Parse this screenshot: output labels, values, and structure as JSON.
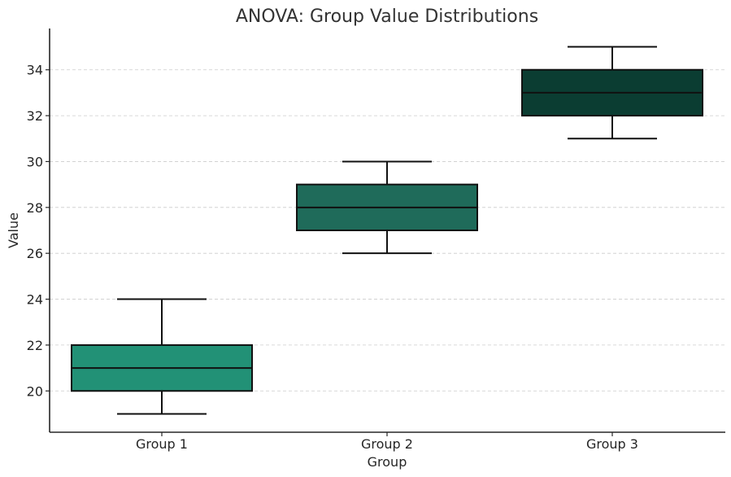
{
  "chart_data": {
    "type": "box",
    "title": "ANOVA: Group Value Distributions",
    "xlabel": "Group",
    "ylabel": "Value",
    "categories": [
      "Group 1",
      "Group 2",
      "Group 3"
    ],
    "boxes": [
      {
        "category": "Group 1",
        "min": 19,
        "q1": 20,
        "median": 21,
        "q3": 22,
        "max": 24,
        "color": "#229176"
      },
      {
        "category": "Group 2",
        "min": 26,
        "q1": 27,
        "median": 28,
        "q3": 29,
        "max": 30,
        "color": "#1f6b5a"
      },
      {
        "category": "Group 3",
        "min": 31,
        "q1": 32,
        "median": 33,
        "q3": 34,
        "max": 35,
        "color": "#0b3d32"
      }
    ],
    "yticks": [
      20,
      22,
      24,
      26,
      28,
      30,
      32,
      34
    ],
    "ylim": [
      18.2,
      35.8
    ],
    "grid": "y-dashed",
    "legend": "none"
  }
}
